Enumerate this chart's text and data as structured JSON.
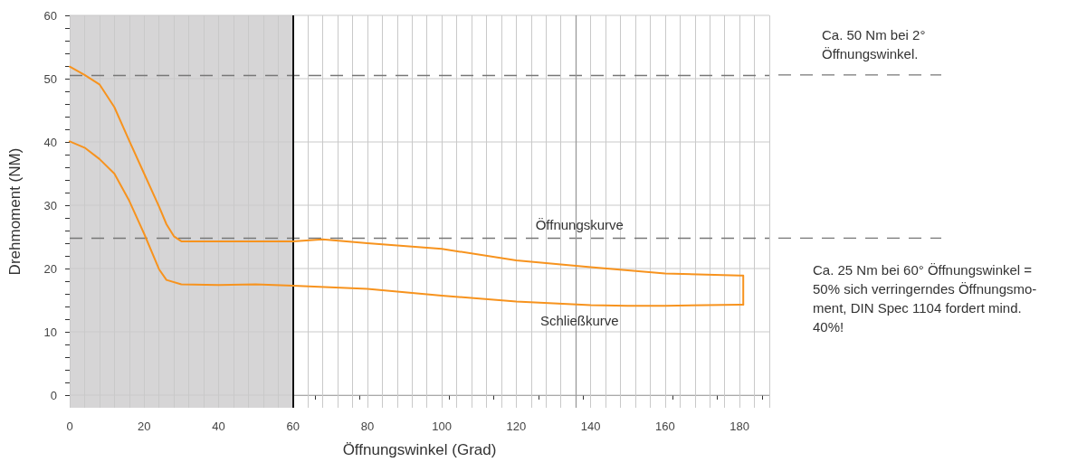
{
  "chart_data": {
    "type": "line",
    "xlabel": "Öffnungswinkel (Grad)",
    "ylabel": "Drehmoment (NM)",
    "xlim": [
      0,
      188
    ],
    "xticks": [
      0,
      20,
      40,
      60,
      80,
      100,
      120,
      140,
      160,
      180
    ],
    "ylim": [
      -2,
      60
    ],
    "yticks": [
      0,
      10,
      20,
      30,
      40,
      50,
      60
    ],
    "grid": true,
    "marker": "none",
    "line_style": "solid",
    "series": [
      {
        "color": "#f7931e",
        "x": [
          0,
          4,
          8,
          12,
          16,
          20,
          24,
          26,
          28,
          30,
          40,
          50,
          60,
          68,
          80,
          100,
          120,
          140,
          160,
          180,
          181,
          181
        ],
        "values": [
          51.9,
          50.6,
          49.1,
          45.5,
          40.2,
          35,
          29.8,
          27,
          25.1,
          24.3,
          24.3,
          24.3,
          24.3,
          24.6,
          24,
          23.1,
          21.3,
          20.2,
          19.2,
          18.9,
          18.9,
          14.3
        ]
      },
      {
        "color": "#f7931e",
        "x": [
          0,
          4,
          8,
          12,
          16,
          20,
          24,
          26,
          30,
          40,
          50,
          60,
          80,
          100,
          120,
          140,
          150,
          160,
          180,
          181
        ],
        "values": [
          40.1,
          39.1,
          37.3,
          35,
          30.7,
          25.5,
          19.9,
          18.2,
          17.5,
          17.4,
          17.5,
          17.3,
          16.8,
          15.7,
          14.8,
          14.2,
          14.1,
          14.1,
          14.3,
          14.3
        ]
      }
    ],
    "bands": [
      {
        "axis": "x",
        "from": 0,
        "to": 60,
        "color": "#d6d5d6"
      }
    ],
    "ref_lines": [
      {
        "axis": "y",
        "value": 50.6,
        "color": "#777777",
        "line_style": "dashed"
      },
      {
        "axis": "y",
        "value": 24.8,
        "color": "#777777",
        "line_style": "dashed"
      },
      {
        "axis": "x",
        "value": 60,
        "color": "#111111",
        "line_style": "solid"
      },
      {
        "axis": "x",
        "value": 136,
        "color": "#9a9a9a",
        "line_style": "solid"
      }
    ],
    "annotations": [
      {
        "text": "Öffnungskurve",
        "x": 137,
        "y": 27
      },
      {
        "text": "Schließkurve",
        "x": 137,
        "y": 11.8
      },
      "Ca. 50 Nm bei 2°\nÖffnungswinkel.",
      "Ca. 25 Nm bei 60° Öffnungswinkel =\n50% sich verringerndes Öffnungsmo-\nment, DIN Spec 1104 fordert mind.\n40%!"
    ]
  }
}
